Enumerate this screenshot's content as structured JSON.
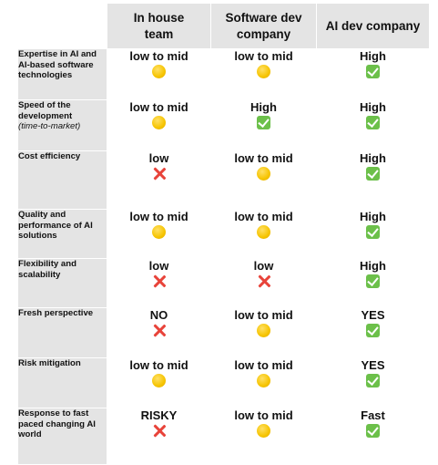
{
  "columns": [
    "In house team",
    "Software dev company",
    "AI dev company"
  ],
  "rows": [
    {
      "label": "Expertise in AI and AI-based software technologies",
      "sublabel": "",
      "cells": [
        {
          "text": "low to mid",
          "icon": "yellow-circle-icon"
        },
        {
          "text": "low to mid",
          "icon": "yellow-circle-icon"
        },
        {
          "text": "High",
          "icon": "green-check-icon"
        }
      ]
    },
    {
      "label": "Speed of the development",
      "sublabel": "(time-to-market)",
      "cells": [
        {
          "text": "low to mid",
          "icon": "yellow-circle-icon"
        },
        {
          "text": "High",
          "icon": "green-check-icon"
        },
        {
          "text": "High",
          "icon": "green-check-icon"
        }
      ]
    },
    {
      "label": "Cost efficiency",
      "sublabel": "",
      "cells": [
        {
          "text": "low",
          "icon": "red-cross-icon"
        },
        {
          "text": "low to mid",
          "icon": "yellow-circle-icon"
        },
        {
          "text": "High",
          "icon": "green-check-icon"
        }
      ]
    },
    {
      "label": "Quality and performance of AI solutions",
      "sublabel": "",
      "cells": [
        {
          "text": "low to mid",
          "icon": "yellow-circle-icon"
        },
        {
          "text": "low to mid",
          "icon": "yellow-circle-icon"
        },
        {
          "text": "High",
          "icon": "green-check-icon"
        }
      ]
    },
    {
      "label": "Flexibility and scalability",
      "sublabel": "",
      "cells": [
        {
          "text": "low",
          "icon": "red-cross-icon"
        },
        {
          "text": "low",
          "icon": "red-cross-icon"
        },
        {
          "text": "High",
          "icon": "green-check-icon"
        }
      ]
    },
    {
      "label": "Fresh perspective",
      "sublabel": "",
      "cells": [
        {
          "text": "NO",
          "icon": "red-cross-icon"
        },
        {
          "text": "low to mid",
          "icon": "yellow-circle-icon"
        },
        {
          "text": "YES",
          "icon": "green-check-icon"
        }
      ]
    },
    {
      "label": "Risk mitigation",
      "sublabel": "",
      "cells": [
        {
          "text": "low to mid",
          "icon": "yellow-circle-icon"
        },
        {
          "text": "low to mid",
          "icon": "yellow-circle-icon"
        },
        {
          "text": "YES",
          "icon": "green-check-icon"
        }
      ]
    },
    {
      "label": "Response to fast paced changing AI world",
      "sublabel": "",
      "cells": [
        {
          "text": "RISKY",
          "icon": "red-cross-icon"
        },
        {
          "text": "low to mid",
          "icon": "yellow-circle-icon"
        },
        {
          "text": "Fast",
          "icon": "green-check-icon"
        }
      ]
    }
  ],
  "colors": {
    "header_bg": "#e4e4e4",
    "check_green": "#6cc04a",
    "cross_red": "#e8433a",
    "dot_yellow": "#f6c400"
  }
}
